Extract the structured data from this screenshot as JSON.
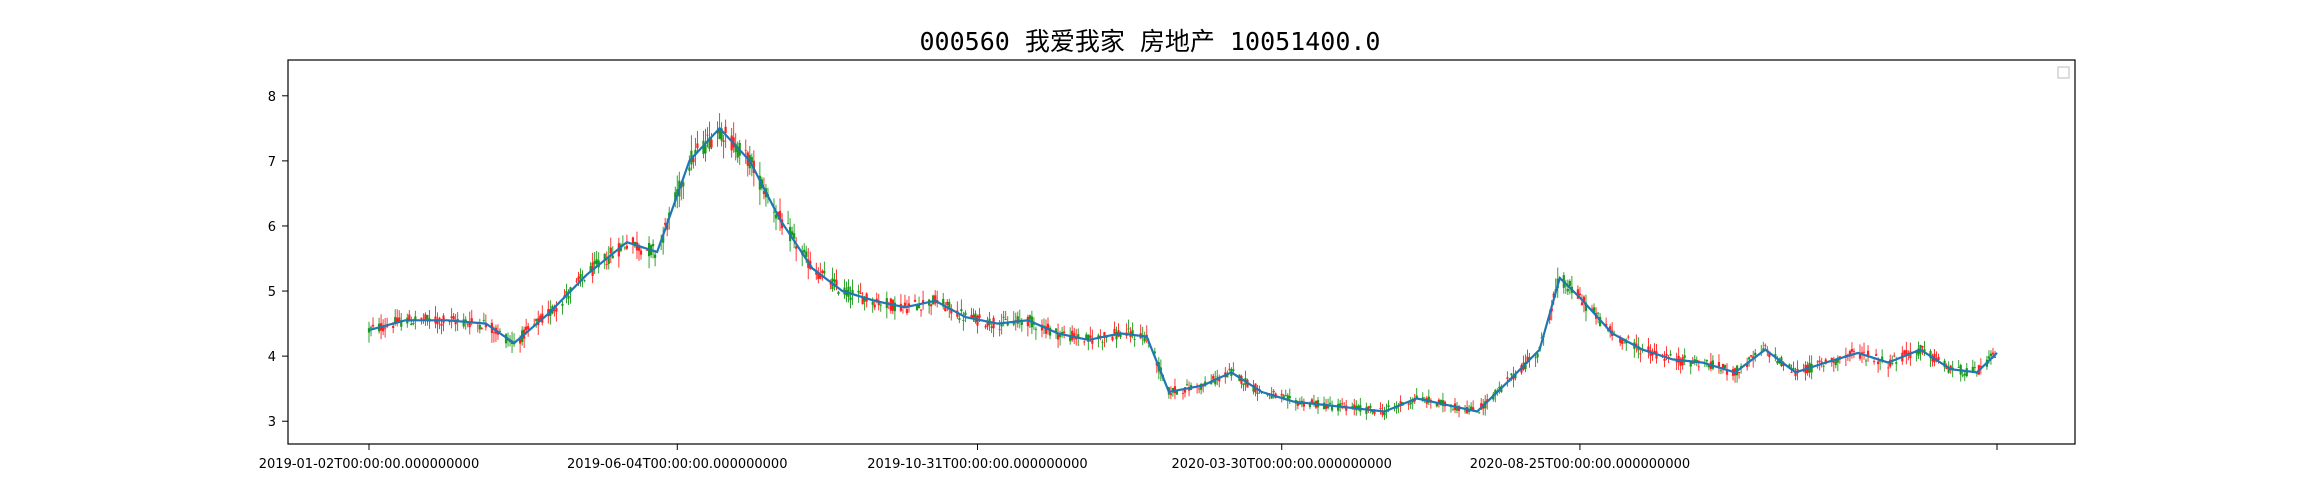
{
  "chart_data": {
    "type": "candlestick",
    "title": "000560 我爱我家 房地产 10051400.0",
    "xlabel": "",
    "ylabel": "",
    "ylim": [
      2.65,
      8.55
    ],
    "yticks": [
      3,
      4,
      5,
      6,
      7,
      8
    ],
    "x_tick_labels": [
      "2019-01-02T00:00:00.000000000",
      "2019-06-04T00:00:00.000000000",
      "2019-10-31T00:00:00.000000000",
      "2020-03-30T00:00:00.000000000",
      "2020-08-25T00:00:00.000000000",
      ""
    ],
    "legend": {
      "placement": "top-right",
      "entries": []
    },
    "grid": false,
    "colors": {
      "up": "#ff2020",
      "down": "#1a9a1a",
      "ma": "#1f77b4"
    },
    "series": [
      {
        "type": "ma-line",
        "points": [
          [
            "2019-01-02",
            4.4
          ],
          [
            "2019-01-20",
            4.55
          ],
          [
            "2019-02-10",
            4.55
          ],
          [
            "2019-03-01",
            4.5
          ],
          [
            "2019-03-15",
            4.2
          ],
          [
            "2019-04-01",
            4.65
          ],
          [
            "2019-04-20",
            5.25
          ],
          [
            "2019-05-10",
            5.75
          ],
          [
            "2019-05-25",
            5.6
          ],
          [
            "2019-06-10",
            7.0
          ],
          [
            "2019-06-25",
            7.5
          ],
          [
            "2019-07-10",
            7.0
          ],
          [
            "2019-07-25",
            6.1
          ],
          [
            "2019-08-10",
            5.35
          ],
          [
            "2019-08-25",
            5.0
          ],
          [
            "2019-09-10",
            4.85
          ],
          [
            "2019-09-25",
            4.75
          ],
          [
            "2019-10-10",
            4.85
          ],
          [
            "2019-10-25",
            4.6
          ],
          [
            "2019-11-10",
            4.5
          ],
          [
            "2019-11-25",
            4.55
          ],
          [
            "2019-12-10",
            4.35
          ],
          [
            "2019-12-25",
            4.25
          ],
          [
            "2020-01-10",
            4.35
          ],
          [
            "2020-01-23",
            4.3
          ],
          [
            "2020-02-03",
            3.45
          ],
          [
            "2020-02-20",
            3.55
          ],
          [
            "2020-03-05",
            3.75
          ],
          [
            "2020-03-20",
            3.45
          ],
          [
            "2020-04-05",
            3.3
          ],
          [
            "2020-04-20",
            3.25
          ],
          [
            "2020-05-05",
            3.2
          ],
          [
            "2020-05-20",
            3.15
          ],
          [
            "2020-06-05",
            3.35
          ],
          [
            "2020-06-20",
            3.25
          ],
          [
            "2020-07-05",
            3.15
          ],
          [
            "2020-07-20",
            3.6
          ],
          [
            "2020-08-05",
            4.1
          ],
          [
            "2020-08-15",
            5.2
          ],
          [
            "2020-08-25",
            4.9
          ],
          [
            "2020-09-10",
            4.35
          ],
          [
            "2020-09-25",
            4.1
          ],
          [
            "2020-10-10",
            3.95
          ],
          [
            "2020-10-25",
            3.9
          ],
          [
            "2020-11-10",
            3.75
          ],
          [
            "2020-11-25",
            4.1
          ],
          [
            "2020-12-10",
            3.75
          ],
          [
            "2020-12-25",
            3.9
          ],
          [
            "2021-01-10",
            4.05
          ],
          [
            "2021-01-25",
            3.9
          ],
          [
            "2021-02-10",
            4.1
          ],
          [
            "2021-02-25",
            3.8
          ],
          [
            "2021-03-10",
            3.75
          ],
          [
            "2021-03-20",
            4.05
          ]
        ]
      }
    ]
  }
}
